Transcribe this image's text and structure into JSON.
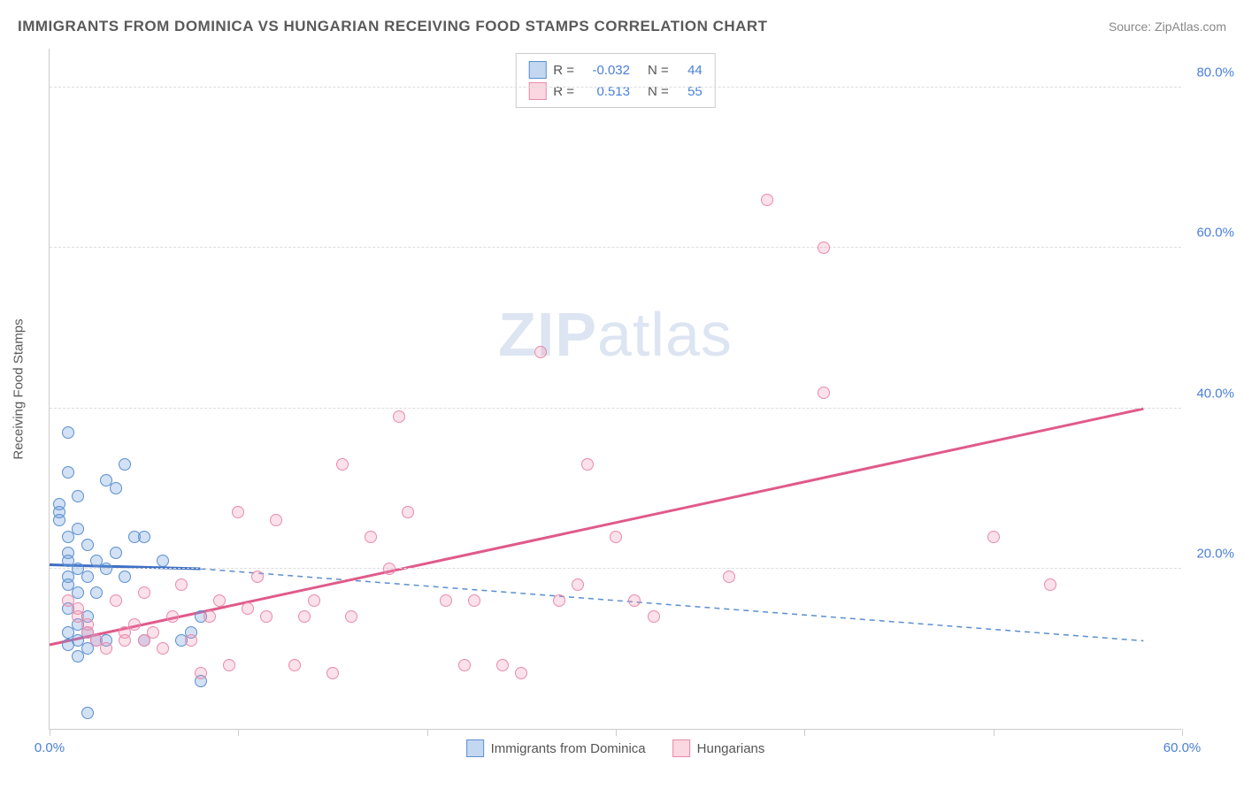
{
  "title": "IMMIGRANTS FROM DOMINICA VS HUNGARIAN RECEIVING FOOD STAMPS CORRELATION CHART",
  "source": "Source: ZipAtlas.com",
  "watermark": {
    "bold": "ZIP",
    "rest": "atlas"
  },
  "y_axis_title": "Receiving Food Stamps",
  "chart": {
    "type": "scatter",
    "xlim": [
      0,
      60
    ],
    "ylim": [
      0,
      85
    ],
    "y_ticks": [
      20,
      40,
      60,
      80
    ],
    "y_tick_labels": [
      "20.0%",
      "40.0%",
      "60.0%",
      "80.0%"
    ],
    "x_ticks": [
      0,
      10,
      20,
      30,
      40,
      50,
      60
    ],
    "x_tick_labels": {
      "0": "0.0%",
      "60": "60.0%"
    },
    "background": "#ffffff",
    "grid_color": "#dddddd",
    "axis_color": "#cccccc",
    "label_color": "#4a7fd8",
    "label_fontsize": 15,
    "marker_size": 14,
    "series": [
      {
        "name": "Immigrants from Dominica",
        "fill": "rgba(108,155,220,0.3)",
        "stroke": "#5a8fd0",
        "R": "-0.032",
        "N": "44",
        "trend": {
          "x1": 0,
          "y1": 20.5,
          "x2": 8,
          "y2": 20.0,
          "color": "#3d6fc4",
          "width": 3,
          "dash": "none"
        },
        "trend_ext": {
          "x1": 8,
          "y1": 20.0,
          "x2": 58,
          "y2": 11.0,
          "color": "#5a8fd0",
          "width": 1.5,
          "dash": "6,5"
        },
        "points": [
          [
            0.5,
            28
          ],
          [
            0.5,
            27
          ],
          [
            0.5,
            26
          ],
          [
            1,
            37
          ],
          [
            1,
            32
          ],
          [
            1,
            24
          ],
          [
            1,
            22
          ],
          [
            1,
            21
          ],
          [
            1,
            19
          ],
          [
            1,
            18
          ],
          [
            1,
            15
          ],
          [
            1,
            12
          ],
          [
            1,
            10.5
          ],
          [
            1.5,
            29
          ],
          [
            1.5,
            25
          ],
          [
            1.5,
            20
          ],
          [
            1.5,
            17
          ],
          [
            1.5,
            13
          ],
          [
            1.5,
            11
          ],
          [
            1.5,
            9
          ],
          [
            2,
            23
          ],
          [
            2,
            19
          ],
          [
            2,
            14
          ],
          [
            2,
            12
          ],
          [
            2,
            10
          ],
          [
            2,
            2
          ],
          [
            2.5,
            21
          ],
          [
            2.5,
            17
          ],
          [
            2.5,
            11
          ],
          [
            3,
            31
          ],
          [
            3,
            20
          ],
          [
            3,
            11
          ],
          [
            3.5,
            30
          ],
          [
            3.5,
            22
          ],
          [
            4,
            33
          ],
          [
            4,
            19
          ],
          [
            4.5,
            24
          ],
          [
            5,
            11
          ],
          [
            5,
            24
          ],
          [
            6,
            21
          ],
          [
            7,
            11
          ],
          [
            7.5,
            12
          ],
          [
            8,
            6
          ],
          [
            8,
            14
          ]
        ]
      },
      {
        "name": "Hungarians",
        "fill": "rgba(240,140,170,0.25)",
        "stroke": "#e88aab",
        "R": "0.513",
        "N": "55",
        "trend": {
          "x1": 0,
          "y1": 10.5,
          "x2": 58,
          "y2": 40.0,
          "color": "#e05a8a",
          "width": 3,
          "dash": "none"
        },
        "points": [
          [
            1,
            16
          ],
          [
            1.5,
            15
          ],
          [
            1.5,
            14
          ],
          [
            2,
            13
          ],
          [
            2,
            12
          ],
          [
            2.5,
            11
          ],
          [
            3,
            10
          ],
          [
            3.5,
            16
          ],
          [
            4,
            11
          ],
          [
            4,
            12
          ],
          [
            4.5,
            13
          ],
          [
            5,
            17
          ],
          [
            5,
            11
          ],
          [
            5.5,
            12
          ],
          [
            6,
            10
          ],
          [
            6.5,
            14
          ],
          [
            7,
            18
          ],
          [
            7.5,
            11
          ],
          [
            8,
            7
          ],
          [
            8.5,
            14
          ],
          [
            9,
            16
          ],
          [
            9.5,
            8
          ],
          [
            10,
            27
          ],
          [
            10.5,
            15
          ],
          [
            11,
            19
          ],
          [
            11.5,
            14
          ],
          [
            12,
            26
          ],
          [
            13,
            8
          ],
          [
            13.5,
            14
          ],
          [
            14,
            16
          ],
          [
            15,
            7
          ],
          [
            15.5,
            33
          ],
          [
            16,
            14
          ],
          [
            17,
            24
          ],
          [
            18,
            20
          ],
          [
            18.5,
            39
          ],
          [
            19,
            27
          ],
          [
            21,
            16
          ],
          [
            22,
            8
          ],
          [
            22.5,
            16
          ],
          [
            24,
            8
          ],
          [
            25,
            7
          ],
          [
            26,
            47
          ],
          [
            27,
            16
          ],
          [
            28,
            18
          ],
          [
            28.5,
            33
          ],
          [
            30,
            24
          ],
          [
            31,
            16
          ],
          [
            32,
            14
          ],
          [
            36,
            19
          ],
          [
            38,
            66
          ],
          [
            41,
            60
          ],
          [
            41,
            42
          ],
          [
            50,
            24
          ],
          [
            53,
            18
          ]
        ]
      }
    ]
  },
  "legend_top": {
    "rows": [
      {
        "swatch": "blue",
        "r_label": "R =",
        "r_val": "-0.032",
        "n_label": "N =",
        "n_val": "44"
      },
      {
        "swatch": "pink",
        "r_label": "R =",
        "r_val": "0.513",
        "n_label": "N =",
        "n_val": "55"
      }
    ]
  },
  "legend_bottom": {
    "items": [
      {
        "swatch": "blue",
        "label": "Immigrants from Dominica"
      },
      {
        "swatch": "pink",
        "label": "Hungarians"
      }
    ]
  }
}
